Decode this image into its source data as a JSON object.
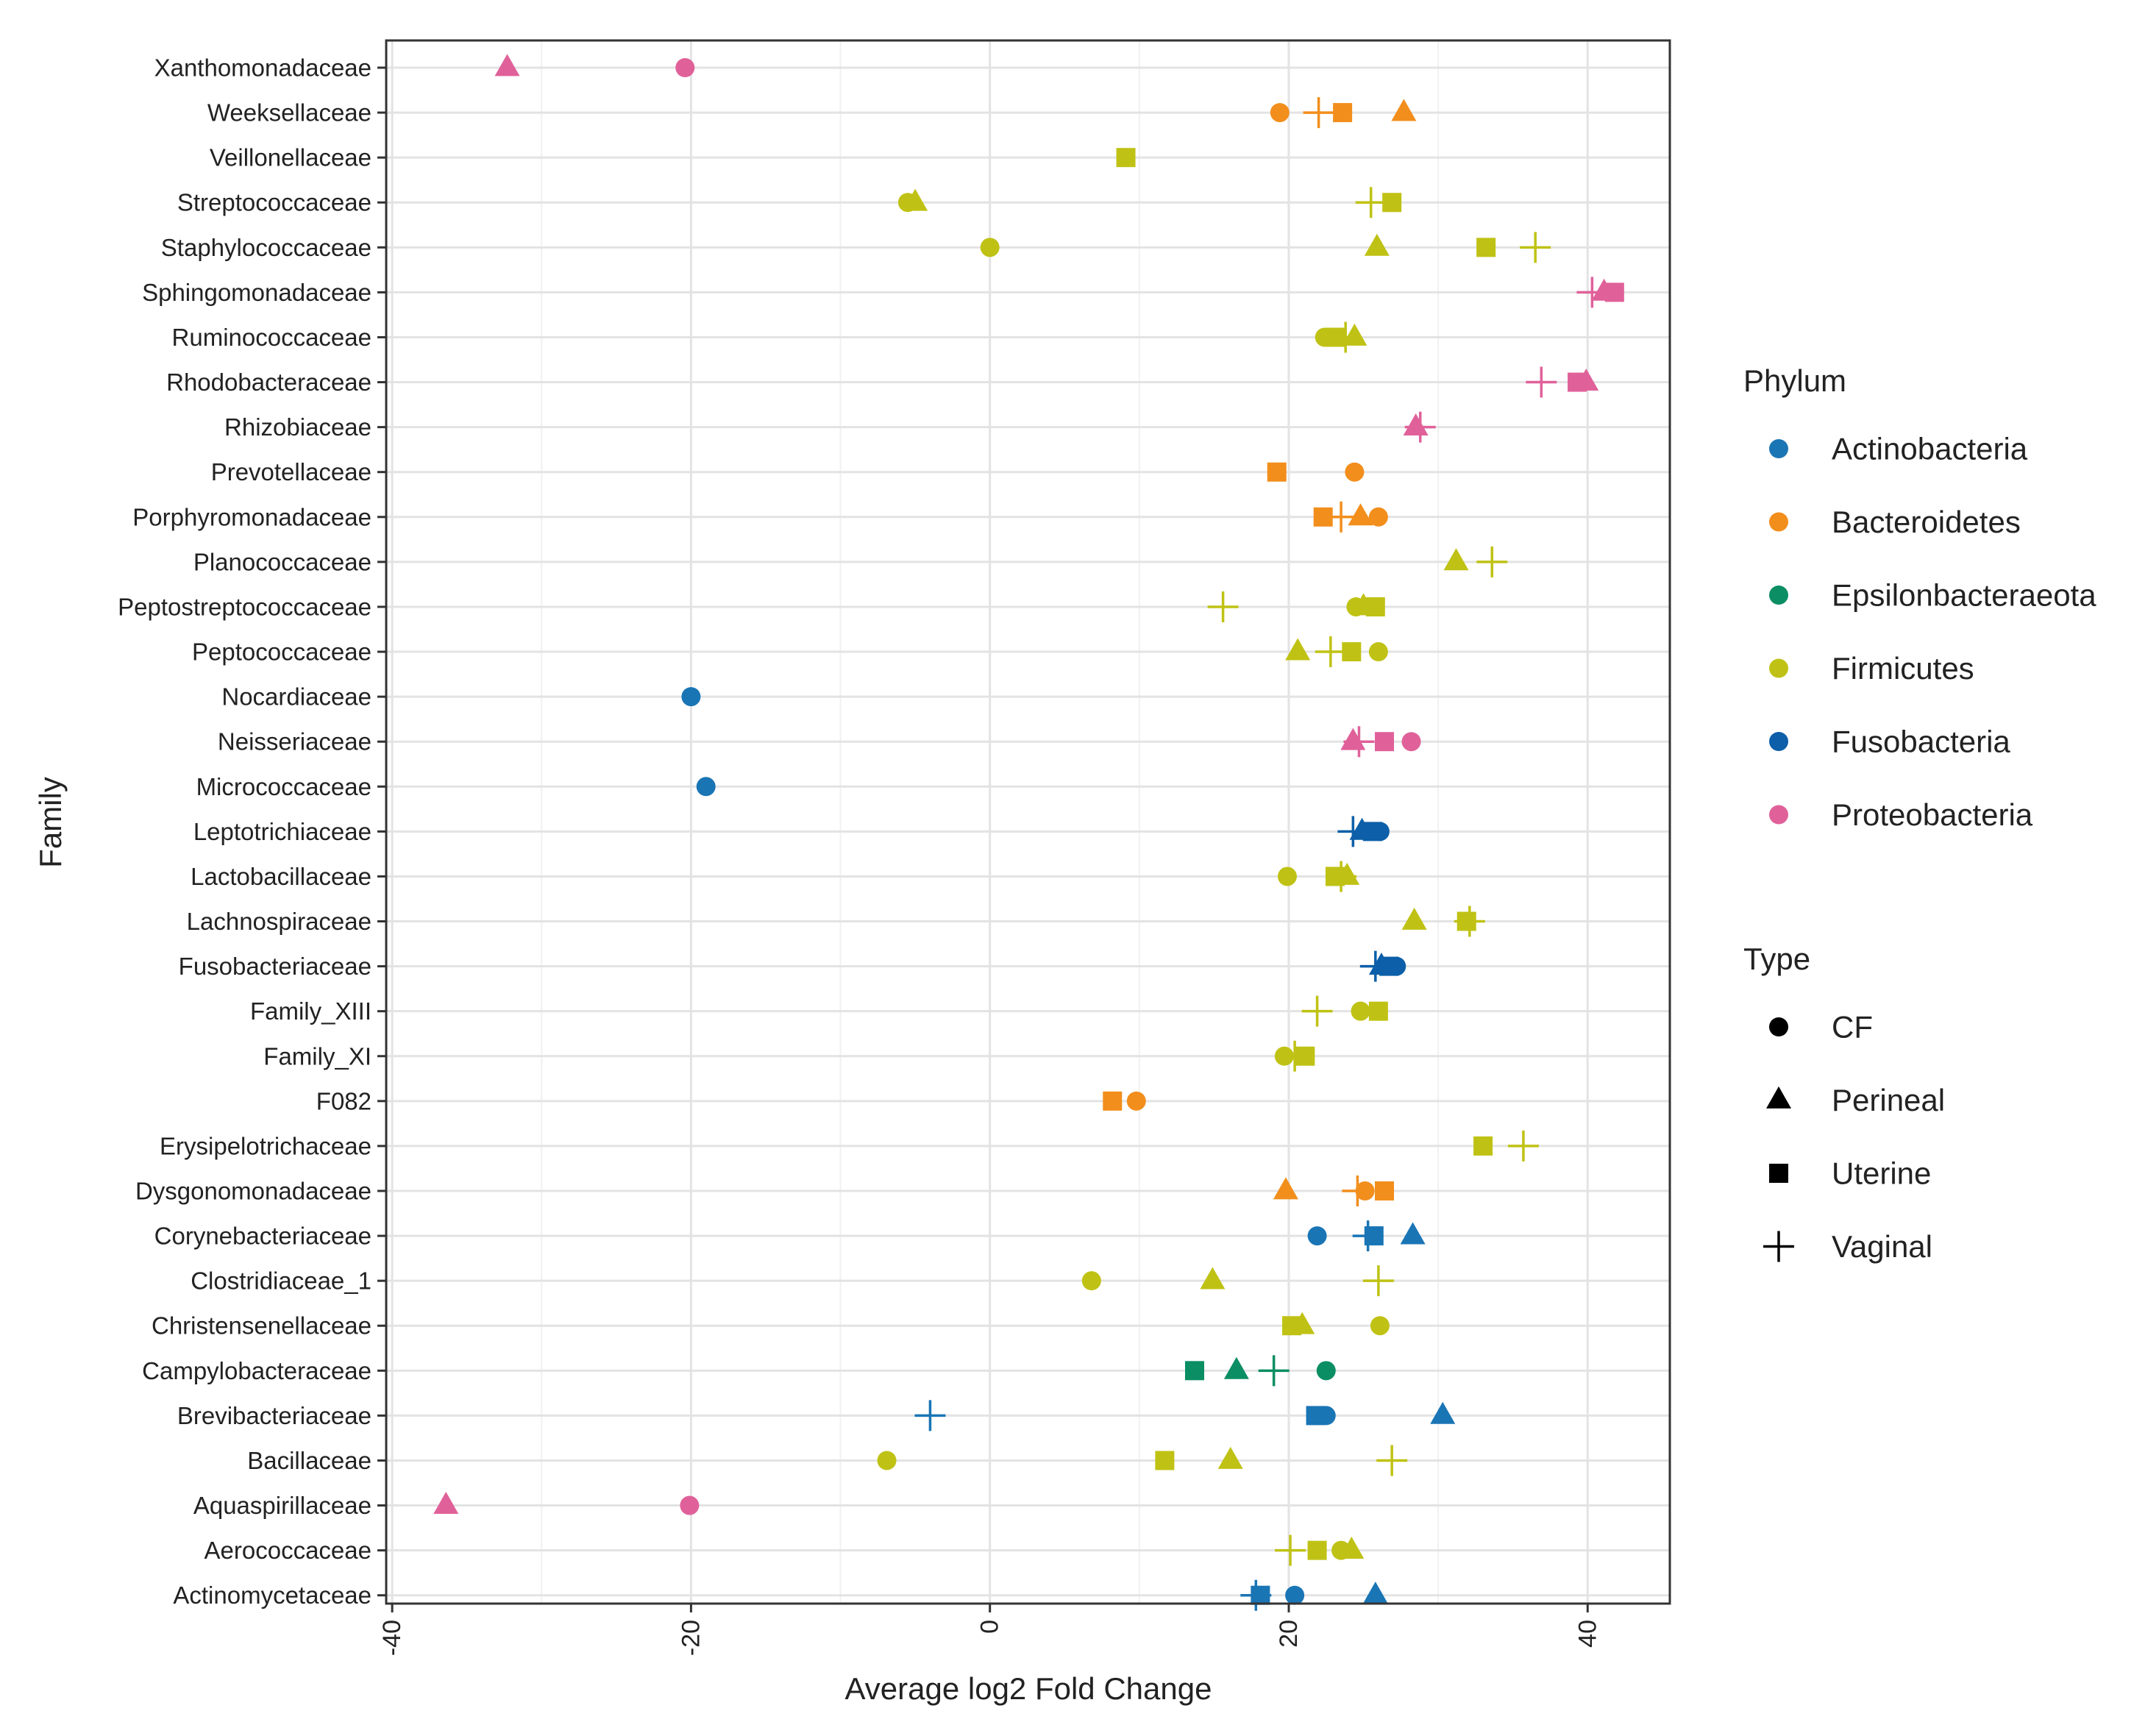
{
  "chart_data": {
    "type": "scatter",
    "xlabel": "Average log2 Fold Change",
    "ylabel": "Family",
    "xlim": [
      -40.4,
      45.5
    ],
    "xticks": [
      -40,
      -20,
      0,
      20,
      40
    ],
    "xtick_labels": [
      "-40",
      "-20",
      "0",
      "20",
      "40"
    ],
    "grid": true,
    "families": [
      "Xanthomonadaceae",
      "Weeksellaceae",
      "Veillonellaceae",
      "Streptococcaceae",
      "Staphylococcaceae",
      "Sphingomonadaceae",
      "Ruminococcaceae",
      "Rhodobacteraceae",
      "Rhizobiaceae",
      "Prevotellaceae",
      "Porphyromonadaceae",
      "Planococcaceae",
      "Peptostreptococcaceae",
      "Peptococcaceae",
      "Nocardiaceae",
      "Neisseriaceae",
      "Micrococcaceae",
      "Leptotrichiaceae",
      "Lactobacillaceae",
      "Lachnospiraceae",
      "Fusobacteriaceae",
      "Family_XIII",
      "Family_XI",
      "F082",
      "Erysipelotrichaceae",
      "Dysgonomonadaceae",
      "Corynebacteriaceae",
      "Clostridiaceae_1",
      "Christensenellaceae",
      "Campylobacteraceae",
      "Brevibacteriaceae",
      "Bacillaceae",
      "Aquaspirillaceae",
      "Aerococcaceae",
      "Actinomycetaceae"
    ],
    "legend_phylum": {
      "title": "Phylum",
      "items": [
        {
          "name": "Actinobacteria",
          "color": "#1A75B5"
        },
        {
          "name": "Bacteroidetes",
          "color": "#F28E1C"
        },
        {
          "name": "Epsilonbacteraeota",
          "color": "#0B8E63"
        },
        {
          "name": "Firmicutes",
          "color": "#BFC214"
        },
        {
          "name": "Fusobacteria",
          "color": "#0C5FA8"
        },
        {
          "name": "Proteobacteria",
          "color": "#E0619A"
        }
      ]
    },
    "legend_type": {
      "title": "Type",
      "items": [
        {
          "name": "CF",
          "shape": "circle"
        },
        {
          "name": "Perineal",
          "shape": "triangle"
        },
        {
          "name": "Uterine",
          "shape": "square"
        },
        {
          "name": "Vaginal",
          "shape": "plus"
        }
      ]
    },
    "points": [
      {
        "family": "Xanthomonadaceae",
        "phylum": "Proteobacteria",
        "type": "Perineal",
        "x": -32.3
      },
      {
        "family": "Xanthomonadaceae",
        "phylum": "Proteobacteria",
        "type": "CF",
        "x": -20.4
      },
      {
        "family": "Weeksellaceae",
        "phylum": "Bacteroidetes",
        "type": "CF",
        "x": 19.4
      },
      {
        "family": "Weeksellaceae",
        "phylum": "Bacteroidetes",
        "type": "Vaginal",
        "x": 22.0
      },
      {
        "family": "Weeksellaceae",
        "phylum": "Bacteroidetes",
        "type": "Uterine",
        "x": 23.6
      },
      {
        "family": "Weeksellaceae",
        "phylum": "Bacteroidetes",
        "type": "Perineal",
        "x": 27.7
      },
      {
        "family": "Veillonellaceae",
        "phylum": "Firmicutes",
        "type": "Uterine",
        "x": 9.1
      },
      {
        "family": "Streptococcaceae",
        "phylum": "Firmicutes",
        "type": "CF",
        "x": -5.5
      },
      {
        "family": "Streptococcaceae",
        "phylum": "Firmicutes",
        "type": "Perineal",
        "x": -5.0
      },
      {
        "family": "Streptococcaceae",
        "phylum": "Firmicutes",
        "type": "Vaginal",
        "x": 25.5
      },
      {
        "family": "Streptococcaceae",
        "phylum": "Firmicutes",
        "type": "Uterine",
        "x": 26.9
      },
      {
        "family": "Staphylococcaceae",
        "phylum": "Firmicutes",
        "type": "CF",
        "x": 0.0
      },
      {
        "family": "Staphylococcaceae",
        "phylum": "Firmicutes",
        "type": "Perineal",
        "x": 25.9
      },
      {
        "family": "Staphylococcaceae",
        "phylum": "Firmicutes",
        "type": "Uterine",
        "x": 33.2
      },
      {
        "family": "Staphylococcaceae",
        "phylum": "Firmicutes",
        "type": "Vaginal",
        "x": 36.5
      },
      {
        "family": "Sphingomonadaceae",
        "phylum": "Proteobacteria",
        "type": "Vaginal",
        "x": 40.3
      },
      {
        "family": "Sphingomonadaceae",
        "phylum": "Proteobacteria",
        "type": "Perineal",
        "x": 41.1
      },
      {
        "family": "Sphingomonadaceae",
        "phylum": "Proteobacteria",
        "type": "Uterine",
        "x": 41.8
      },
      {
        "family": "Ruminococcaceae",
        "phylum": "Firmicutes",
        "type": "CF",
        "x": 22.4
      },
      {
        "family": "Ruminococcaceae",
        "phylum": "Firmicutes",
        "type": "Uterine",
        "x": 23.1
      },
      {
        "family": "Ruminococcaceae",
        "phylum": "Firmicutes",
        "type": "Vaginal",
        "x": 23.8
      },
      {
        "family": "Ruminococcaceae",
        "phylum": "Firmicutes",
        "type": "Perineal",
        "x": 24.4
      },
      {
        "family": "Rhodobacteraceae",
        "phylum": "Proteobacteria",
        "type": "Vaginal",
        "x": 36.9
      },
      {
        "family": "Rhodobacteraceae",
        "phylum": "Proteobacteria",
        "type": "Uterine",
        "x": 39.3
      },
      {
        "family": "Rhodobacteraceae",
        "phylum": "Proteobacteria",
        "type": "Perineal",
        "x": 39.9
      },
      {
        "family": "Rhizobiaceae",
        "phylum": "Proteobacteria",
        "type": "Perineal",
        "x": 28.5
      },
      {
        "family": "Rhizobiaceae",
        "phylum": "Proteobacteria",
        "type": "Vaginal",
        "x": 28.8
      },
      {
        "family": "Prevotellaceae",
        "phylum": "Bacteroidetes",
        "type": "Uterine",
        "x": 19.2
      },
      {
        "family": "Prevotellaceae",
        "phylum": "Bacteroidetes",
        "type": "CF",
        "x": 24.4
      },
      {
        "family": "Porphyromonadaceae",
        "phylum": "Bacteroidetes",
        "type": "Uterine",
        "x": 22.3
      },
      {
        "family": "Porphyromonadaceae",
        "phylum": "Bacteroidetes",
        "type": "Vaginal",
        "x": 23.5
      },
      {
        "family": "Porphyromonadaceae",
        "phylum": "Bacteroidetes",
        "type": "Perineal",
        "x": 24.8
      },
      {
        "family": "Porphyromonadaceae",
        "phylum": "Bacteroidetes",
        "type": "CF",
        "x": 26.0
      },
      {
        "family": "Planococcaceae",
        "phylum": "Firmicutes",
        "type": "Perineal",
        "x": 31.2
      },
      {
        "family": "Planococcaceae",
        "phylum": "Firmicutes",
        "type": "Vaginal",
        "x": 33.6
      },
      {
        "family": "Peptostreptococcaceae",
        "phylum": "Firmicutes",
        "type": "Vaginal",
        "x": 15.6
      },
      {
        "family": "Peptostreptococcaceae",
        "phylum": "Firmicutes",
        "type": "CF",
        "x": 24.5
      },
      {
        "family": "Peptostreptococcaceae",
        "phylum": "Firmicutes",
        "type": "Perineal",
        "x": 25.0
      },
      {
        "family": "Peptostreptococcaceae",
        "phylum": "Firmicutes",
        "type": "Uterine",
        "x": 25.8
      },
      {
        "family": "Peptococcaceae",
        "phylum": "Firmicutes",
        "type": "Perineal",
        "x": 20.6
      },
      {
        "family": "Peptococcaceae",
        "phylum": "Firmicutes",
        "type": "Vaginal",
        "x": 22.8
      },
      {
        "family": "Peptococcaceae",
        "phylum": "Firmicutes",
        "type": "Uterine",
        "x": 24.2
      },
      {
        "family": "Peptococcaceae",
        "phylum": "Firmicutes",
        "type": "CF",
        "x": 26.0
      },
      {
        "family": "Nocardiaceae",
        "phylum": "Actinobacteria",
        "type": "CF",
        "x": -20.0
      },
      {
        "family": "Neisseriaceae",
        "phylum": "Proteobacteria",
        "type": "Perineal",
        "x": 24.3
      },
      {
        "family": "Neisseriaceae",
        "phylum": "Proteobacteria",
        "type": "Vaginal",
        "x": 24.7
      },
      {
        "family": "Neisseriaceae",
        "phylum": "Proteobacteria",
        "type": "Uterine",
        "x": 26.4
      },
      {
        "family": "Neisseriaceae",
        "phylum": "Proteobacteria",
        "type": "CF",
        "x": 28.2
      },
      {
        "family": "Micrococcaceae",
        "phylum": "Actinobacteria",
        "type": "CF",
        "x": -19.0
      },
      {
        "family": "Leptotrichiaceae",
        "phylum": "Fusobacteria",
        "type": "Vaginal",
        "x": 24.3
      },
      {
        "family": "Leptotrichiaceae",
        "phylum": "Fusobacteria",
        "type": "Perineal",
        "x": 24.9
      },
      {
        "family": "Leptotrichiaceae",
        "phylum": "Fusobacteria",
        "type": "Uterine",
        "x": 25.6
      },
      {
        "family": "Leptotrichiaceae",
        "phylum": "Fusobacteria",
        "type": "CF",
        "x": 26.1
      },
      {
        "family": "Lactobacillaceae",
        "phylum": "Firmicutes",
        "type": "CF",
        "x": 19.9
      },
      {
        "family": "Lactobacillaceae",
        "phylum": "Firmicutes",
        "type": "Uterine",
        "x": 23.1
      },
      {
        "family": "Lactobacillaceae",
        "phylum": "Firmicutes",
        "type": "Vaginal",
        "x": 23.5
      },
      {
        "family": "Lactobacillaceae",
        "phylum": "Firmicutes",
        "type": "Perineal",
        "x": 23.9
      },
      {
        "family": "Lachnospiraceae",
        "phylum": "Firmicutes",
        "type": "Perineal",
        "x": 28.4
      },
      {
        "family": "Lachnospiraceae",
        "phylum": "Firmicutes",
        "type": "Uterine",
        "x": 31.9
      },
      {
        "family": "Lachnospiraceae",
        "phylum": "Firmicutes",
        "type": "Vaginal",
        "x": 32.1
      },
      {
        "family": "Fusobacteriaceae",
        "phylum": "Fusobacteria",
        "type": "Vaginal",
        "x": 25.8
      },
      {
        "family": "Fusobacteriaceae",
        "phylum": "Fusobacteria",
        "type": "Perineal",
        "x": 26.2
      },
      {
        "family": "Fusobacteriaceae",
        "phylum": "Fusobacteria",
        "type": "Uterine",
        "x": 26.7
      },
      {
        "family": "Fusobacteriaceae",
        "phylum": "Fusobacteria",
        "type": "CF",
        "x": 27.2
      },
      {
        "family": "Family_XIII",
        "phylum": "Firmicutes",
        "type": "Vaginal",
        "x": 21.9
      },
      {
        "family": "Family_XIII",
        "phylum": "Firmicutes",
        "type": "CF",
        "x": 24.8
      },
      {
        "family": "Family_XIII",
        "phylum": "Firmicutes",
        "type": "Uterine",
        "x": 26.0
      },
      {
        "family": "Family_XI",
        "phylum": "Firmicutes",
        "type": "CF",
        "x": 19.7
      },
      {
        "family": "Family_XI",
        "phylum": "Firmicutes",
        "type": "Vaginal",
        "x": 20.4
      },
      {
        "family": "Family_XI",
        "phylum": "Firmicutes",
        "type": "Uterine",
        "x": 21.1
      },
      {
        "family": "F082",
        "phylum": "Bacteroidetes",
        "type": "Uterine",
        "x": 8.2
      },
      {
        "family": "F082",
        "phylum": "Bacteroidetes",
        "type": "CF",
        "x": 9.8
      },
      {
        "family": "Erysipelotrichaceae",
        "phylum": "Firmicutes",
        "type": "Uterine",
        "x": 33.0
      },
      {
        "family": "Erysipelotrichaceae",
        "phylum": "Firmicutes",
        "type": "Vaginal",
        "x": 35.7
      },
      {
        "family": "Dysgonomonadaceae",
        "phylum": "Bacteroidetes",
        "type": "Perineal",
        "x": 19.8
      },
      {
        "family": "Dysgonomonadaceae",
        "phylum": "Bacteroidetes",
        "type": "Vaginal",
        "x": 24.6
      },
      {
        "family": "Dysgonomonadaceae",
        "phylum": "Bacteroidetes",
        "type": "CF",
        "x": 25.1
      },
      {
        "family": "Dysgonomonadaceae",
        "phylum": "Bacteroidetes",
        "type": "Uterine",
        "x": 26.4
      },
      {
        "family": "Corynebacteriaceae",
        "phylum": "Actinobacteria",
        "type": "CF",
        "x": 21.9
      },
      {
        "family": "Corynebacteriaceae",
        "phylum": "Actinobacteria",
        "type": "Vaginal",
        "x": 25.3
      },
      {
        "family": "Corynebacteriaceae",
        "phylum": "Actinobacteria",
        "type": "Uterine",
        "x": 25.7
      },
      {
        "family": "Corynebacteriaceae",
        "phylum": "Actinobacteria",
        "type": "Perineal",
        "x": 28.3
      },
      {
        "family": "Clostridiaceae_1",
        "phylum": "Firmicutes",
        "type": "CF",
        "x": 6.8
      },
      {
        "family": "Clostridiaceae_1",
        "phylum": "Firmicutes",
        "type": "Perineal",
        "x": 14.9
      },
      {
        "family": "Clostridiaceae_1",
        "phylum": "Firmicutes",
        "type": "Vaginal",
        "x": 26.0
      },
      {
        "family": "Christensenellaceae",
        "phylum": "Firmicutes",
        "type": "Uterine",
        "x": 20.2
      },
      {
        "family": "Christensenellaceae",
        "phylum": "Firmicutes",
        "type": "Perineal",
        "x": 20.9
      },
      {
        "family": "Christensenellaceae",
        "phylum": "Firmicutes",
        "type": "CF",
        "x": 26.1
      },
      {
        "family": "Campylobacteraceae",
        "phylum": "Epsilonbacteraeota",
        "type": "Uterine",
        "x": 13.7
      },
      {
        "family": "Campylobacteraceae",
        "phylum": "Epsilonbacteraeota",
        "type": "Perineal",
        "x": 16.5
      },
      {
        "family": "Campylobacteraceae",
        "phylum": "Epsilonbacteraeota",
        "type": "Vaginal",
        "x": 19.0
      },
      {
        "family": "Campylobacteraceae",
        "phylum": "Epsilonbacteraeota",
        "type": "CF",
        "x": 22.5
      },
      {
        "family": "Brevibacteriaceae",
        "phylum": "Actinobacteria",
        "type": "Vaginal",
        "x": -4.0
      },
      {
        "family": "Brevibacteriaceae",
        "phylum": "Actinobacteria",
        "type": "Uterine",
        "x": 21.8
      },
      {
        "family": "Brevibacteriaceae",
        "phylum": "Actinobacteria",
        "type": "CF",
        "x": 22.5
      },
      {
        "family": "Brevibacteriaceae",
        "phylum": "Actinobacteria",
        "type": "Perineal",
        "x": 30.3
      },
      {
        "family": "Bacillaceae",
        "phylum": "Firmicutes",
        "type": "CF",
        "x": -6.9
      },
      {
        "family": "Bacillaceae",
        "phylum": "Firmicutes",
        "type": "Uterine",
        "x": 11.7
      },
      {
        "family": "Bacillaceae",
        "phylum": "Firmicutes",
        "type": "Perineal",
        "x": 16.1
      },
      {
        "family": "Bacillaceae",
        "phylum": "Firmicutes",
        "type": "Vaginal",
        "x": 26.9
      },
      {
        "family": "Aquaspirillaceae",
        "phylum": "Proteobacteria",
        "type": "Perineal",
        "x": -36.4
      },
      {
        "family": "Aquaspirillaceae",
        "phylum": "Proteobacteria",
        "type": "CF",
        "x": -20.1
      },
      {
        "family": "Aerococcaceae",
        "phylum": "Firmicutes",
        "type": "Vaginal",
        "x": 20.1
      },
      {
        "family": "Aerococcaceae",
        "phylum": "Firmicutes",
        "type": "Uterine",
        "x": 21.9
      },
      {
        "family": "Aerococcaceae",
        "phylum": "Firmicutes",
        "type": "CF",
        "x": 23.5
      },
      {
        "family": "Aerococcaceae",
        "phylum": "Firmicutes",
        "type": "Perineal",
        "x": 24.2
      },
      {
        "family": "Actinomycetaceae",
        "phylum": "Actinobacteria",
        "type": "Vaginal",
        "x": 17.8
      },
      {
        "family": "Actinomycetaceae",
        "phylum": "Actinobacteria",
        "type": "Uterine",
        "x": 18.1
      },
      {
        "family": "Actinomycetaceae",
        "phylum": "Actinobacteria",
        "type": "CF",
        "x": 20.4
      },
      {
        "family": "Actinomycetaceae",
        "phylum": "Actinobacteria",
        "type": "Perineal",
        "x": 25.8
      }
    ]
  }
}
